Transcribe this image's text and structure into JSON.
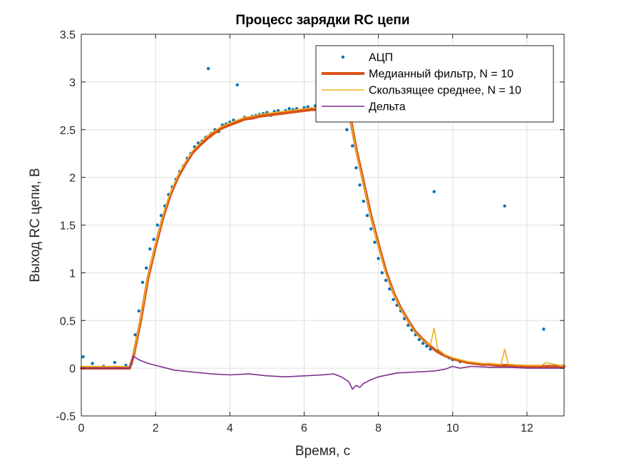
{
  "chart_data": {
    "type": "line",
    "title": "Процесс зарядки RC цепи",
    "xlabel": "Время, с",
    "ylabel": "Выход RC цепи, В",
    "xlim": [
      0,
      13
    ],
    "ylim": [
      -0.5,
      3.5
    ],
    "xticks": [
      0,
      2,
      4,
      6,
      8,
      10,
      12
    ],
    "yticks": [
      -0.5,
      0,
      0.5,
      1,
      1.5,
      2,
      2.5,
      3,
      3.5
    ],
    "ytick_labels": [
      "-0.5",
      "0",
      "0.5",
      "1",
      "1.5",
      "2",
      "2.5",
      "3",
      "3.5"
    ],
    "grid": true,
    "legend_position": "top-right",
    "series": [
      {
        "name": "АЦП",
        "style": "points",
        "color": "#0072BD",
        "x": [
          0.05,
          0.3,
          0.6,
          0.9,
          1.2,
          1.35,
          1.45,
          1.55,
          1.65,
          1.75,
          1.85,
          1.95,
          2.05,
          2.15,
          2.25,
          2.35,
          2.45,
          2.55,
          2.65,
          2.75,
          2.85,
          2.95,
          3.05,
          3.15,
          3.25,
          3.35,
          3.42,
          3.5,
          3.6,
          3.7,
          3.8,
          3.9,
          4.0,
          4.1,
          4.2,
          4.3,
          4.4,
          4.5,
          4.6,
          4.7,
          4.8,
          4.9,
          5.0,
          5.1,
          5.2,
          5.3,
          5.4,
          5.5,
          5.6,
          5.7,
          5.8,
          5.9,
          6.0,
          6.1,
          6.2,
          6.3,
          6.4,
          6.5,
          6.6,
          6.7,
          6.8,
          7.05,
          7.15,
          7.3,
          7.4,
          7.5,
          7.6,
          7.7,
          7.8,
          7.9,
          8.0,
          8.1,
          8.2,
          8.3,
          8.4,
          8.5,
          8.6,
          8.7,
          8.8,
          8.9,
          9.0,
          9.1,
          9.2,
          9.3,
          9.4,
          9.5,
          9.6,
          9.7,
          9.8,
          9.9,
          10.0,
          10.2,
          10.4,
          10.6,
          10.8,
          11.0,
          11.2,
          11.4,
          11.6,
          11.8,
          12.0,
          12.2,
          12.45,
          12.6,
          12.8,
          12.95
        ],
        "values": [
          0.12,
          0.05,
          0.02,
          0.06,
          0.03,
          0.05,
          0.35,
          0.6,
          0.9,
          1.05,
          1.25,
          1.35,
          1.5,
          1.6,
          1.7,
          1.82,
          1.9,
          1.98,
          2.06,
          2.12,
          2.2,
          2.25,
          2.32,
          2.36,
          2.38,
          2.42,
          3.14,
          2.46,
          2.5,
          2.48,
          2.55,
          2.56,
          2.58,
          2.6,
          2.97,
          2.6,
          2.63,
          2.62,
          2.64,
          2.65,
          2.66,
          2.67,
          2.68,
          2.65,
          2.69,
          2.7,
          2.68,
          2.7,
          2.72,
          2.71,
          2.72,
          2.7,
          2.73,
          2.74,
          2.72,
          2.75,
          2.73,
          3.23,
          2.74,
          2.73,
          2.72,
          2.72,
          2.5,
          2.33,
          2.1,
          1.92,
          1.75,
          1.6,
          1.46,
          1.32,
          1.15,
          1.0,
          0.92,
          0.83,
          0.72,
          0.66,
          0.6,
          0.52,
          0.45,
          0.4,
          0.35,
          0.3,
          0.26,
          0.23,
          0.2,
          1.85,
          0.18,
          0.15,
          0.13,
          0.11,
          0.09,
          0.07,
          0.06,
          0.05,
          0.04,
          0.04,
          0.03,
          1.7,
          0.03,
          0.02,
          0.02,
          0.02,
          0.41,
          0.02,
          0.02,
          0.02
        ]
      },
      {
        "name": "Медианный фильтр, N = 10",
        "style": "line-thick",
        "color": "#D95319",
        "x": [
          0,
          1.3,
          1.4,
          1.6,
          1.8,
          2.0,
          2.2,
          2.4,
          2.6,
          2.8,
          3.0,
          3.2,
          3.4,
          3.6,
          3.8,
          4.0,
          4.2,
          4.4,
          4.6,
          4.8,
          5.0,
          5.2,
          5.4,
          5.6,
          5.8,
          6.0,
          6.2,
          6.4,
          6.6,
          6.8,
          7.2,
          7.4,
          7.6,
          7.8,
          8.0,
          8.2,
          8.4,
          8.6,
          8.8,
          9.0,
          9.2,
          9.4,
          9.6,
          9.8,
          10.0,
          10.2,
          10.4,
          10.6,
          10.8,
          11.0,
          11.2,
          11.5,
          12.0,
          12.5,
          13.0
        ],
        "values": [
          0,
          0,
          0.12,
          0.5,
          0.95,
          1.28,
          1.58,
          1.82,
          2.0,
          2.14,
          2.26,
          2.34,
          2.41,
          2.47,
          2.52,
          2.55,
          2.58,
          2.61,
          2.62,
          2.64,
          2.65,
          2.66,
          2.67,
          2.68,
          2.69,
          2.7,
          2.71,
          2.71,
          2.72,
          2.72,
          2.72,
          2.3,
          1.95,
          1.6,
          1.3,
          1.02,
          0.8,
          0.63,
          0.5,
          0.38,
          0.3,
          0.23,
          0.17,
          0.13,
          0.1,
          0.08,
          0.06,
          0.05,
          0.04,
          0.04,
          0.03,
          0.03,
          0.02,
          0.02,
          0.02
        ]
      },
      {
        "name": "Скользящее среднее, N = 10",
        "style": "line",
        "color": "#EDB120",
        "x": [
          0,
          1.3,
          1.4,
          1.6,
          1.8,
          2.0,
          2.2,
          2.4,
          2.6,
          2.8,
          3.0,
          3.2,
          3.4,
          3.6,
          3.8,
          4.0,
          4.2,
          4.4,
          4.6,
          4.8,
          5.0,
          5.2,
          5.4,
          5.6,
          5.8,
          6.0,
          6.2,
          6.4,
          6.6,
          6.8,
          7.2,
          7.4,
          7.6,
          7.8,
          8.0,
          8.2,
          8.4,
          8.6,
          8.8,
          9.0,
          9.2,
          9.4,
          9.5,
          9.6,
          9.8,
          10.0,
          10.2,
          10.4,
          10.6,
          10.8,
          11.0,
          11.3,
          11.4,
          11.5,
          12.0,
          12.4,
          12.5,
          13.0
        ],
        "values": [
          0.02,
          0.02,
          0.14,
          0.52,
          0.97,
          1.3,
          1.6,
          1.84,
          2.02,
          2.16,
          2.28,
          2.36,
          2.44,
          2.49,
          2.54,
          2.57,
          2.6,
          2.63,
          2.64,
          2.66,
          2.67,
          2.68,
          2.69,
          2.7,
          2.71,
          2.72,
          2.73,
          2.73,
          2.76,
          2.74,
          2.72,
          2.28,
          1.93,
          1.58,
          1.28,
          1.0,
          0.79,
          0.62,
          0.49,
          0.37,
          0.29,
          0.24,
          0.42,
          0.2,
          0.14,
          0.11,
          0.09,
          0.07,
          0.06,
          0.05,
          0.05,
          0.04,
          0.2,
          0.04,
          0.03,
          0.03,
          0.06,
          0.02
        ]
      },
      {
        "name": "Дельта",
        "style": "line",
        "color": "#7E2F8E",
        "x": [
          0,
          1.3,
          1.4,
          1.5,
          1.6,
          1.8,
          2.0,
          2.2,
          2.5,
          3.0,
          3.5,
          4.0,
          4.5,
          5.0,
          5.5,
          6.0,
          6.5,
          6.8,
          7.0,
          7.2,
          7.3,
          7.4,
          7.5,
          7.6,
          7.8,
          8.0,
          8.5,
          9.0,
          9.5,
          9.8,
          10.0,
          10.2,
          10.5,
          11.0,
          11.5,
          12.0,
          12.5,
          13.0
        ],
        "values": [
          0,
          0,
          0.13,
          0.1,
          0.08,
          0.05,
          0.03,
          0.01,
          -0.02,
          -0.04,
          -0.06,
          -0.07,
          -0.06,
          -0.08,
          -0.09,
          -0.08,
          -0.07,
          -0.06,
          -0.09,
          -0.14,
          -0.22,
          -0.18,
          -0.2,
          -0.16,
          -0.12,
          -0.09,
          -0.05,
          -0.04,
          -0.03,
          -0.01,
          0.02,
          0.0,
          0.02,
          0.01,
          0.01,
          0.0,
          0.0,
          0.0
        ]
      }
    ]
  }
}
